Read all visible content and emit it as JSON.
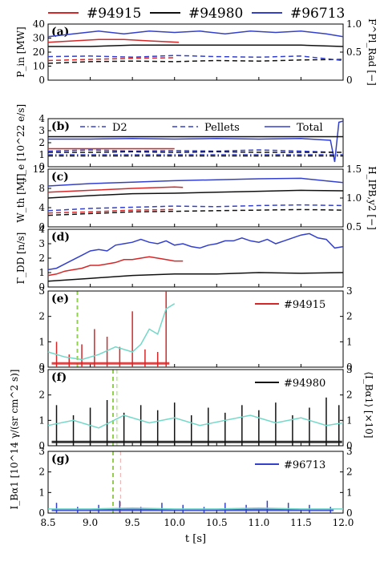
{
  "legend": [
    {
      "label": "#94915",
      "color": "#d62728"
    },
    {
      "label": "#94980",
      "color": "#111111"
    },
    {
      "label": "#96713",
      "color": "#3340cc"
    }
  ],
  "xaxis": {
    "label": "t [s]",
    "ticks": [
      "8.5",
      "9.0",
      "9.5",
      "10.0",
      "10.5",
      "11.0",
      "11.5",
      "12.0"
    ],
    "range": [
      8.5,
      12.0
    ]
  },
  "colors": {
    "red": "#d62728",
    "black": "#111111",
    "blue": "#3340cc",
    "cyan": "#72d8c8",
    "green": "#8fd14f"
  },
  "chart_data": [
    {
      "panel": "(a)",
      "type": "line",
      "ylabel": "P_in [MW]",
      "ylabel_right": "F^Pl_Rad [−]",
      "ylim": [
        0,
        40
      ],
      "ylim_right": [
        0,
        1.0
      ],
      "yticks": [
        "0",
        "10",
        "20",
        "30",
        "40"
      ],
      "yticks_right": [
        "0",
        "0.5",
        "1.0"
      ],
      "series": [
        {
          "name": "#94915",
          "color": "red",
          "style": "solid",
          "axis": "left",
          "x": [
            8.5,
            8.8,
            9.1,
            9.4,
            9.7,
            10.05
          ],
          "y": [
            27,
            28,
            29,
            29,
            28,
            27
          ]
        },
        {
          "name": "#94980",
          "color": "black",
          "style": "solid",
          "axis": "left",
          "x": [
            8.5,
            9.0,
            9.5,
            10.0,
            10.5,
            11.0,
            11.5,
            12.0
          ],
          "y": [
            24,
            24,
            25,
            25,
            25,
            25,
            25,
            24
          ]
        },
        {
          "name": "#96713",
          "color": "blue",
          "style": "solid",
          "axis": "left",
          "x": [
            8.5,
            8.8,
            9.1,
            9.4,
            9.7,
            10.0,
            10.3,
            10.6,
            10.9,
            11.2,
            11.5,
            11.8,
            12.0
          ],
          "y": [
            31,
            33,
            35,
            33,
            35,
            34,
            35,
            33,
            35,
            34,
            35,
            33,
            31
          ]
        },
        {
          "name": "#94915",
          "color": "red",
          "style": "dashed",
          "axis": "right",
          "x": [
            8.5,
            9.0,
            9.5,
            10.0
          ],
          "y": [
            0.35,
            0.37,
            0.39,
            0.4
          ]
        },
        {
          "name": "#94980",
          "color": "black",
          "style": "dashed",
          "axis": "right",
          "x": [
            8.5,
            9.0,
            9.5,
            10.0,
            10.5,
            11.0,
            11.5,
            12.0
          ],
          "y": [
            0.3,
            0.33,
            0.34,
            0.33,
            0.35,
            0.34,
            0.36,
            0.37
          ]
        },
        {
          "name": "#96713",
          "color": "blue",
          "style": "dashed",
          "axis": "right",
          "x": [
            8.5,
            9.0,
            9.5,
            10.0,
            10.5,
            11.0,
            11.5,
            12.0
          ],
          "y": [
            0.42,
            0.43,
            0.41,
            0.44,
            0.42,
            0.41,
            0.43,
            0.35
          ]
        }
      ]
    },
    {
      "panel": "(b)",
      "type": "line",
      "ylabel": "Γ_e [10^22 e/s]",
      "ylim": [
        0,
        4
      ],
      "yticks": [
        "0",
        "1",
        "2",
        "3",
        "4"
      ],
      "legend": [
        "D2",
        "Pellets",
        "Total"
      ],
      "series": [
        {
          "name": "Total",
          "color": "blue",
          "style": "solid",
          "x": [
            8.5,
            9.0,
            9.5,
            10.0,
            10.5,
            11.0,
            11.5,
            11.85,
            11.9,
            11.95,
            12.0
          ],
          "y": [
            2.3,
            2.3,
            2.35,
            2.3,
            2.35,
            2.3,
            2.35,
            2.2,
            0.4,
            3.7,
            3.8
          ]
        },
        {
          "name": "Total",
          "color": "black",
          "style": "solid",
          "x": [
            8.5,
            9.0,
            9.5,
            10.0,
            10.5,
            11.0,
            11.5,
            12.0
          ],
          "y": [
            2.5,
            2.5,
            2.5,
            2.5,
            2.5,
            2.5,
            2.5,
            2.5
          ]
        },
        {
          "name": "Total",
          "color": "red",
          "style": "solid",
          "x": [
            8.5,
            9.0,
            9.5,
            10.0
          ],
          "y": [
            1.5,
            1.5,
            1.5,
            1.5
          ]
        },
        {
          "name": "Pellets",
          "color": "blue",
          "style": "dashed",
          "x": [
            8.5,
            9.0,
            9.5,
            10.0,
            10.5,
            11.0,
            11.5,
            11.9
          ],
          "y": [
            1.3,
            1.4,
            1.3,
            1.35,
            1.3,
            1.4,
            1.3,
            1.2
          ]
        },
        {
          "name": "Pellets",
          "color": "black",
          "style": "dashed",
          "x": [
            8.5,
            9.0,
            9.5,
            10.0,
            10.5,
            11.0,
            11.5,
            12.0
          ],
          "y": [
            1.2,
            1.2,
            1.25,
            1.2,
            1.25,
            1.2,
            1.2,
            1.2
          ]
        },
        {
          "name": "D2",
          "color": "blue",
          "style": "dashdot",
          "x": [
            8.5,
            12.0
          ],
          "y": [
            1.0,
            1.0
          ]
        },
        {
          "name": "D2",
          "color": "black",
          "style": "dashdot",
          "x": [
            8.5,
            12.0
          ],
          "y": [
            0.9,
            0.9
          ]
        }
      ]
    },
    {
      "panel": "(c)",
      "type": "line",
      "ylabel": "W_th [MJ]",
      "ylabel_right": "H_IPB,y2 [−]",
      "ylim": [
        0,
        12
      ],
      "ylim_right": [
        0.5,
        1.5
      ],
      "yticks": [
        "0",
        "4",
        "8",
        "12"
      ],
      "yticks_right": [
        "0.5",
        "1.0",
        "1.5"
      ],
      "series": [
        {
          "name": "#96713",
          "color": "blue",
          "style": "solid",
          "axis": "left",
          "x": [
            8.5,
            9.0,
            9.5,
            10.0,
            10.5,
            11.0,
            11.5,
            12.0
          ],
          "y": [
            8.5,
            9.0,
            9.3,
            9.6,
            9.8,
            10.0,
            10.1,
            9.2
          ]
        },
        {
          "name": "#94915",
          "color": "red",
          "style": "solid",
          "axis": "left",
          "x": [
            8.5,
            9.0,
            9.5,
            10.0,
            10.1
          ],
          "y": [
            7.2,
            7.6,
            8.0,
            8.3,
            8.2
          ]
        },
        {
          "name": "#94980",
          "color": "black",
          "style": "solid",
          "axis": "left",
          "x": [
            8.5,
            9.0,
            9.5,
            10.0,
            10.5,
            11.0,
            11.5,
            12.0
          ],
          "y": [
            6.0,
            6.5,
            6.9,
            7.0,
            7.2,
            7.4,
            7.6,
            7.5
          ]
        },
        {
          "name": "#96713",
          "color": "blue",
          "style": "dashed",
          "axis": "right",
          "x": [
            8.5,
            9.0,
            9.5,
            10.0,
            10.5,
            11.0,
            11.5,
            12.0
          ],
          "y": [
            0.78,
            0.82,
            0.84,
            0.86,
            0.85,
            0.87,
            0.88,
            0.87
          ]
        },
        {
          "name": "#94915",
          "color": "red",
          "style": "dashed",
          "axis": "right",
          "x": [
            8.5,
            9.0,
            9.5,
            10.0
          ],
          "y": [
            0.74,
            0.76,
            0.79,
            0.8
          ]
        },
        {
          "name": "#94980",
          "color": "black",
          "style": "dashed",
          "axis": "right",
          "x": [
            8.5,
            9.0,
            9.5,
            10.0,
            10.5,
            11.0,
            11.5,
            12.0
          ],
          "y": [
            0.7,
            0.73,
            0.76,
            0.77,
            0.78,
            0.79,
            0.8,
            0.79
          ]
        }
      ]
    },
    {
      "panel": "(d)",
      "type": "line",
      "ylabel": "Γ_DD [n/s]",
      "ylim": [
        0,
        4
      ],
      "yticks": [
        "0",
        "1",
        "2",
        "3",
        "4"
      ],
      "series": [
        {
          "name": "#96713",
          "color": "blue",
          "style": "solid",
          "x": [
            8.5,
            8.6,
            8.7,
            8.8,
            8.9,
            9.0,
            9.1,
            9.2,
            9.3,
            9.4,
            9.5,
            9.6,
            9.7,
            9.8,
            9.9,
            10.0,
            10.1,
            10.2,
            10.3,
            10.4,
            10.5,
            10.6,
            10.7,
            10.8,
            10.9,
            11.0,
            11.1,
            11.2,
            11.3,
            11.4,
            11.5,
            11.6,
            11.7,
            11.8,
            11.9,
            12.0
          ],
          "y": [
            1.2,
            1.3,
            1.6,
            1.9,
            2.2,
            2.5,
            2.6,
            2.5,
            2.9,
            3.0,
            3.1,
            3.3,
            3.1,
            3.0,
            3.2,
            2.9,
            3.0,
            2.8,
            2.7,
            2.9,
            3.0,
            3.2,
            3.2,
            3.4,
            3.2,
            3.1,
            3.3,
            3.0,
            3.2,
            3.4,
            3.6,
            3.7,
            3.4,
            3.3,
            2.7,
            2.8
          ]
        },
        {
          "name": "#94915",
          "color": "red",
          "style": "solid",
          "x": [
            8.5,
            8.6,
            8.7,
            8.8,
            8.9,
            9.0,
            9.1,
            9.2,
            9.3,
            9.4,
            9.5,
            9.6,
            9.7,
            9.8,
            9.9,
            10.0,
            10.1
          ],
          "y": [
            0.8,
            0.9,
            1.1,
            1.2,
            1.3,
            1.5,
            1.5,
            1.6,
            1.7,
            1.9,
            1.9,
            2.0,
            2.1,
            2.0,
            1.9,
            1.8,
            1.8
          ]
        },
        {
          "name": "#94980",
          "color": "black",
          "style": "solid",
          "x": [
            8.5,
            9.0,
            9.5,
            10.0,
            10.5,
            11.0,
            11.5,
            12.0
          ],
          "y": [
            0.4,
            0.6,
            0.8,
            0.9,
            0.9,
            1.0,
            0.95,
            1.0
          ]
        }
      ]
    },
    {
      "panel": "(e)",
      "type": "line",
      "ylabel_shared": "I_Bα1 [10^14 γ/(sr cm^2 s)]",
      "ylabel_right_shared": "⟨I_Bα1⟩ [×10]",
      "ylim": [
        0,
        3
      ],
      "ylim_right": [
        0,
        3
      ],
      "yticks": [
        "0",
        "1",
        "2",
        "3"
      ],
      "yticks_right": [
        "0",
        "1",
        "2",
        "3"
      ],
      "legend": "#94915",
      "series": [
        {
          "name": "#94915",
          "color": "red",
          "style": "spikes",
          "x": [
            8.6,
            8.75,
            8.9,
            9.05,
            9.2,
            9.35,
            9.5,
            9.65,
            9.8,
            9.9
          ],
          "y": [
            1.0,
            0.5,
            0.9,
            1.5,
            1.2,
            0.8,
            2.2,
            0.7,
            0.6,
            3.0
          ]
        },
        {
          "name": "#94915",
          "color": "cyan",
          "style": "solid",
          "axis": "right",
          "x": [
            8.5,
            8.7,
            8.9,
            9.1,
            9.3,
            9.5,
            9.6,
            9.7,
            9.8,
            9.9,
            10.0
          ],
          "y": [
            0.6,
            0.4,
            0.3,
            0.5,
            0.8,
            0.6,
            0.9,
            1.5,
            1.3,
            2.3,
            2.5
          ]
        }
      ]
    },
    {
      "panel": "(f)",
      "type": "line",
      "ylim": [
        0,
        3
      ],
      "ylim_right": [
        0,
        3
      ],
      "yticks": [
        "0",
        "1",
        "2",
        "3"
      ],
      "yticks_right": [
        "0",
        "1",
        "2",
        "3"
      ],
      "legend": "#94980",
      "series": [
        {
          "name": "#94980",
          "color": "black",
          "style": "spikes",
          "x": [
            8.6,
            8.8,
            9.0,
            9.2,
            9.4,
            9.6,
            9.8,
            10.0,
            10.2,
            10.4,
            10.6,
            10.8,
            11.0,
            11.2,
            11.4,
            11.6,
            11.8,
            11.95
          ],
          "y": [
            1.6,
            1.2,
            1.5,
            1.8,
            1.3,
            1.6,
            1.4,
            1.7,
            1.2,
            1.5,
            1.3,
            1.6,
            1.4,
            1.7,
            1.2,
            1.5,
            1.9,
            1.6
          ]
        },
        {
          "name": "#94980",
          "color": "cyan",
          "style": "solid",
          "axis": "right",
          "x": [
            8.5,
            8.8,
            9.1,
            9.4,
            9.7,
            10.0,
            10.3,
            10.6,
            10.9,
            11.2,
            11.5,
            11.8,
            12.0
          ],
          "y": [
            0.8,
            1.0,
            0.7,
            1.2,
            0.9,
            1.1,
            0.8,
            1.0,
            1.2,
            0.9,
            1.1,
            0.8,
            0.9
          ]
        }
      ]
    },
    {
      "panel": "(g)",
      "type": "line",
      "ylim": [
        0,
        3
      ],
      "ylim_right": [
        0,
        3
      ],
      "yticks": [
        "0",
        "1",
        "2",
        "3"
      ],
      "yticks_right": [
        "0",
        "1",
        "2",
        "3"
      ],
      "legend": "#96713",
      "series": [
        {
          "name": "#96713",
          "color": "blue",
          "style": "spikes",
          "x": [
            8.6,
            8.85,
            9.1,
            9.35,
            9.6,
            9.85,
            10.1,
            10.35,
            10.6,
            10.85,
            11.1,
            11.35,
            11.6,
            11.85
          ],
          "y": [
            0.5,
            0.3,
            0.4,
            0.6,
            0.3,
            0.5,
            0.4,
            0.3,
            0.5,
            0.4,
            0.6,
            0.5,
            0.4,
            0.3
          ]
        },
        {
          "name": "#96713",
          "color": "cyan",
          "style": "solid",
          "axis": "right",
          "x": [
            8.5,
            9.0,
            9.5,
            10.0,
            10.5,
            11.0,
            11.5,
            12.0
          ],
          "y": [
            0.2,
            0.2,
            0.25,
            0.2,
            0.2,
            0.25,
            0.2,
            0.2
          ]
        }
      ]
    }
  ]
}
